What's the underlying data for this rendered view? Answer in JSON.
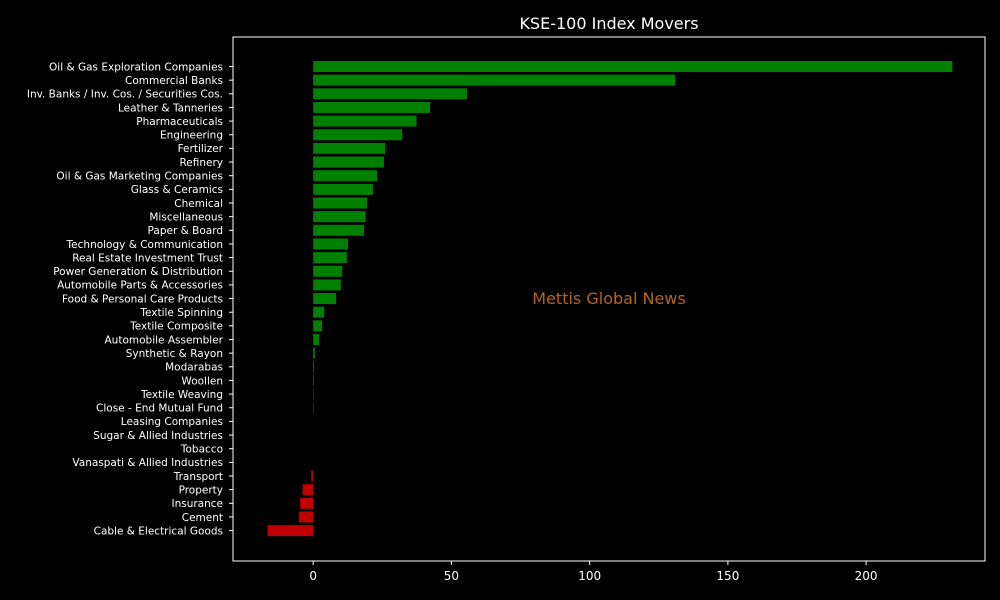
{
  "colors": {
    "background": "#000000",
    "positive": "#008000",
    "negative": "#c00000",
    "text": "#ffffff",
    "frame": "#ffffff",
    "watermark": "#b5651d"
  },
  "chart_data": {
    "type": "bar",
    "orientation": "horizontal",
    "title": "KSE-100 Index Movers",
    "watermark": "Mettis Global News",
    "xlabel": "",
    "ylabel": "",
    "xlim": [
      -29,
      243
    ],
    "xticks": [
      0,
      50,
      100,
      150,
      200
    ],
    "grid": false,
    "categories": [
      "Oil & Gas Exploration Companies",
      "Commercial Banks",
      "Inv. Banks / Inv. Cos. / Securities Cos.",
      "Leather & Tanneries",
      "Pharmaceuticals",
      "Engineering",
      "Fertilizer",
      "Refinery",
      "Oil & Gas Marketing Companies",
      "Glass & Ceramics",
      "Chemical",
      "Miscellaneous",
      "Paper & Board",
      "Technology & Communication",
      "Real Estate Investment Trust",
      "Power Generation & Distribution",
      "Automobile Parts & Accessories",
      "Food & Personal Care Products",
      "Textile Spinning",
      "Textile Composite",
      "Automobile Assembler",
      "Synthetic & Rayon",
      "Modarabas",
      "Woollen",
      "Textile Weaving",
      "Close - End Mutual Fund",
      "Leasing Companies",
      "Sugar & Allied Industries",
      "Tobacco",
      "Vanaspati & Allied Industries",
      "Transport",
      "Property",
      "Insurance",
      "Cement",
      "Cable & Electrical Goods"
    ],
    "values": [
      231.2,
      131.0,
      55.6,
      42.3,
      37.4,
      32.2,
      26.0,
      25.6,
      23.1,
      21.6,
      19.5,
      19.0,
      18.4,
      12.6,
      12.2,
      10.5,
      10.0,
      8.3,
      4.0,
      3.2,
      2.1,
      0.6,
      0.3,
      0.25,
      0.2,
      0.2,
      0,
      0,
      0,
      0,
      -0.7,
      -3.8,
      -4.7,
      -5.2,
      -16.5
    ]
  }
}
